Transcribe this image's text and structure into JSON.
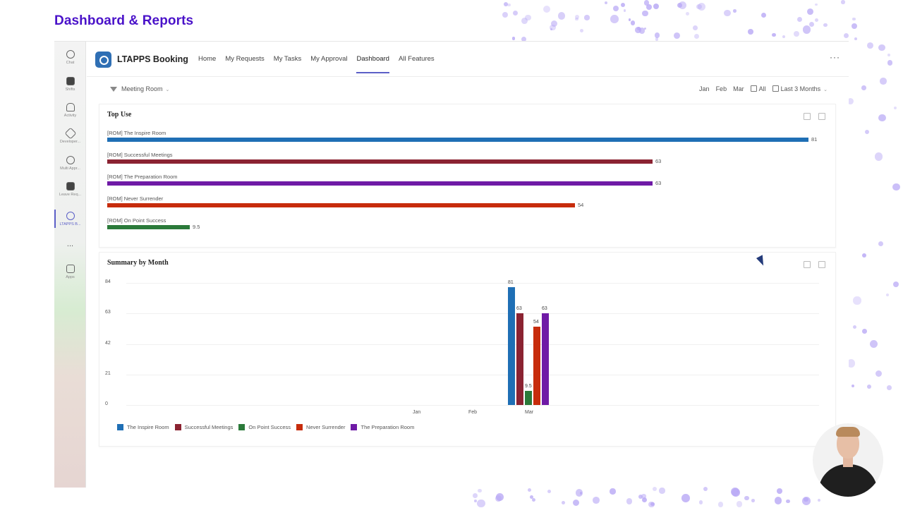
{
  "slide": {
    "title": "Dashboard & Reports"
  },
  "rail": {
    "items": [
      {
        "label": "Chat"
      },
      {
        "label": "Shifts"
      },
      {
        "label": "Activity"
      },
      {
        "label": "Developer..."
      },
      {
        "label": "Multi Appr..."
      },
      {
        "label": "Leave Req..."
      },
      {
        "label": "LTAPPS B..."
      },
      {
        "label": "..."
      },
      {
        "label": "Apps"
      }
    ]
  },
  "app": {
    "name": "LTAPPS Booking",
    "nav": [
      "Home",
      "My Requests",
      "My Tasks",
      "My Approval",
      "Dashboard",
      "All Features"
    ],
    "active_nav": "Dashboard",
    "more": "···"
  },
  "filters": {
    "category": "Meeting Room",
    "months": [
      "Jan",
      "Feb",
      "Mar"
    ],
    "scope": "All",
    "range": "Last 3 Months"
  },
  "colors": {
    "inspire": "#1f6fb5",
    "successful": "#8b2332",
    "preparation": "#6f1aa6",
    "never": "#c72c0c",
    "onpoint": "#2b7a3a",
    "accent": "#5b5fc7",
    "title": "#4a12c9"
  },
  "top_use": {
    "title": "Top Use",
    "items": [
      {
        "label": "[ROM] The Inspire Room",
        "value": 81,
        "display": "81",
        "color": "#1f6fb5"
      },
      {
        "label": "[ROM] Successful Meetings",
        "value": 63,
        "display": "63",
        "color": "#8b2332"
      },
      {
        "label": "[ROM] The Preparation Room",
        "value": 63,
        "display": "63",
        "color": "#6f1aa6"
      },
      {
        "label": "[ROM] Never Surrender",
        "value": 54,
        "display": "54",
        "color": "#c72c0c"
      },
      {
        "label": "[ROM] On Point Success",
        "value": 9.5,
        "display": "9.5",
        "color": "#2b7a3a"
      }
    ]
  },
  "summary": {
    "title": "Summary by Month",
    "y_ticks": [
      "84",
      "63",
      "42",
      "21",
      "0"
    ],
    "x_ticks": [
      "Jan",
      "Feb",
      "Mar"
    ],
    "legend": [
      "The Inspire Room",
      "Successful Meetings",
      "On Point Success",
      "Never Surrender",
      "The Preparation Room"
    ]
  },
  "chart_data": {
    "type": "bar",
    "categories": [
      "Jan",
      "Feb",
      "Mar"
    ],
    "ylim": [
      0,
      84
    ],
    "series": [
      {
        "name": "The Inspire Room",
        "values": [
          0,
          0,
          81
        ],
        "color": "#1f6fb5"
      },
      {
        "name": "Successful Meetings",
        "values": [
          0,
          0,
          63
        ],
        "color": "#8b2332"
      },
      {
        "name": "On Point Success",
        "values": [
          0,
          0,
          9.5
        ],
        "color": "#2b7a3a"
      },
      {
        "name": "Never Surrender",
        "values": [
          0,
          0,
          54
        ],
        "color": "#c72c0c"
      },
      {
        "name": "The Preparation Room",
        "values": [
          0,
          0,
          63
        ],
        "color": "#6f1aa6"
      }
    ]
  }
}
